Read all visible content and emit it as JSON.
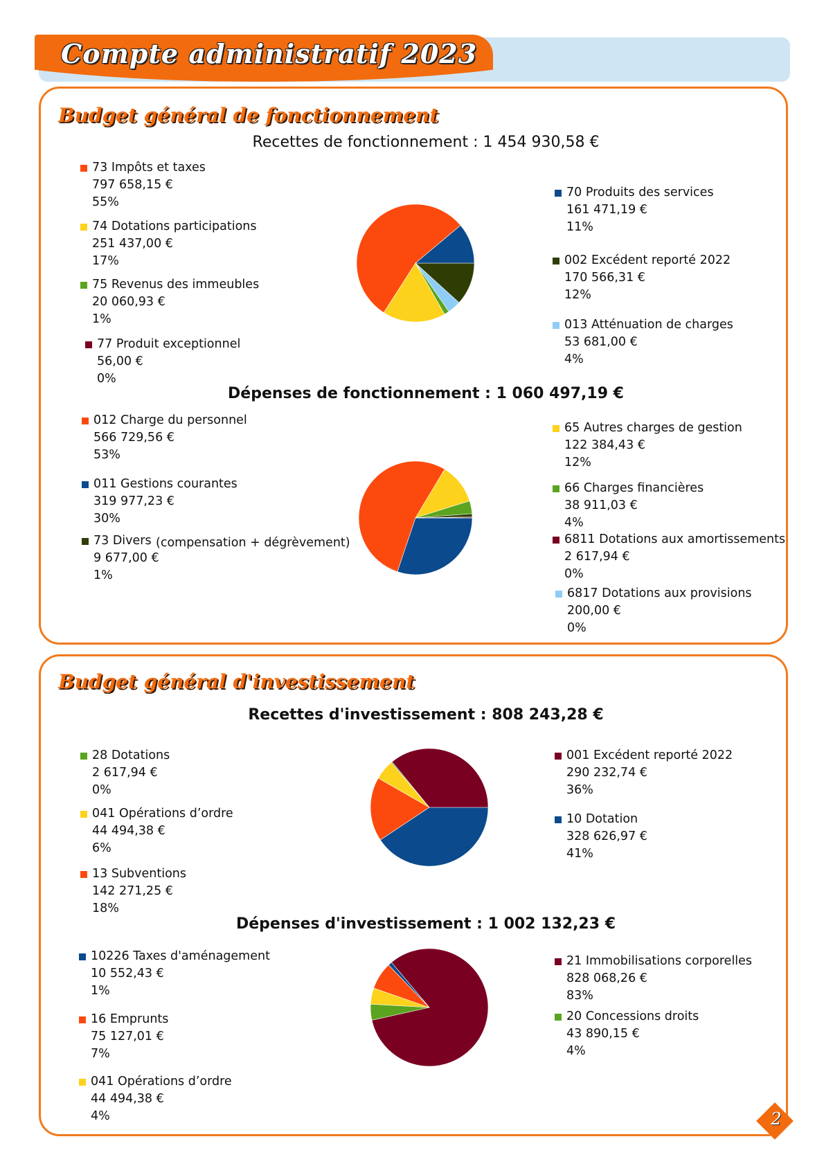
{
  "header": {
    "title": "Compte administratif 2023"
  },
  "page_number": "2",
  "fonctionnement": {
    "title": "Budget général de fonctionnement",
    "recettes": {
      "heading": "Recettes de fonctionnement : 1 454 930,58 €",
      "items": [
        {
          "label": "73 Impôts et taxes",
          "amount": "797 658,15 €",
          "pct": "55%",
          "value": 797658.15,
          "color": "#fc4a0f"
        },
        {
          "label": "74 Dotations participations",
          "amount": "251 437,00 €",
          "pct": "17%",
          "value": 251437.0,
          "color": "#fdd21c"
        },
        {
          "label": "75 Revenus des immeubles",
          "amount": "20 060,93 €",
          "pct": "1%",
          "value": 20060.93,
          "color": "#5aa41f"
        },
        {
          "label": "77  Produit exceptionnel",
          "amount": "56,00 €",
          "pct": "0%",
          "value": 56.0,
          "color": "#7a0022"
        },
        {
          "label": "70 Produits des services",
          "amount": "161 471,19 €",
          "pct": "11%",
          "value": 161471.19,
          "color": "#0b4a8c"
        },
        {
          "label": "002 Excédent reporté 2022",
          "amount": "170 566,31 €",
          "pct": "12%",
          "value": 170566.31,
          "color": "#2f3d05"
        },
        {
          "label": "013 Atténuation de charges",
          "amount": "53 681,00 €",
          "pct": "4%",
          "value": 53681.0,
          "color": "#8ecdf5"
        }
      ]
    },
    "depenses": {
      "heading": "Dépenses de fonctionnement : 1 060 497,19  €",
      "note": "(compensation + dégrèvement)",
      "items": [
        {
          "label": "012 Charge du personnel",
          "amount": "566 729,56 €",
          "pct": "53%",
          "value": 566729.56,
          "color": "#fc4a0f"
        },
        {
          "label": "011 Gestions courantes",
          "amount": "319 977,23 €",
          "pct": "30%",
          "value": 319977.23,
          "color": "#0b4a8c"
        },
        {
          "label": "73 Divers",
          "amount": "9 677,00 €",
          "pct": "1%",
          "value": 9677.0,
          "color": "#2f3d05"
        },
        {
          "label": "65 Autres charges de gestion",
          "amount": "122 384,43 €",
          "pct": "12%",
          "value": 122384.43,
          "color": "#fdd21c"
        },
        {
          "label": "66 Charges financières",
          "amount": "38 911,03 €",
          "pct": "4%",
          "value": 38911.03,
          "color": "#5aa41f"
        },
        {
          "label": "6811 Dotations aux amortissements",
          "amount": "2 617,94 €",
          "pct": "0%",
          "value": 2617.94,
          "color": "#7a0022"
        },
        {
          "label": "6817  Dotations aux provisions",
          "amount": "200,00 €",
          "pct": "0%",
          "value": 200.0,
          "color": "#8ecdf5"
        }
      ]
    }
  },
  "investissement": {
    "title": "Budget général d'investissement",
    "recettes": {
      "heading": "Recettes d'investissement : 808 243,28 €",
      "items": [
        {
          "label": "28 Dotations",
          "amount": "2 617,94 €",
          "pct": "0%",
          "value": 2617.94,
          "color": "#5aa41f"
        },
        {
          "label": "041 Opérations d’ordre",
          "amount": "44 494,38 €",
          "pct": "6%",
          "value": 44494.38,
          "color": "#fdd21c"
        },
        {
          "label": "13 Subventions",
          "amount": "142 271,25 €",
          "pct": "18%",
          "value": 142271.25,
          "color": "#fc4a0f"
        },
        {
          "label": "001 Excédent reporté 2022",
          "amount": "290 232,74 €",
          "pct": "36%",
          "value": 290232.74,
          "color": "#7a0022"
        },
        {
          "label": "10 Dotation",
          "amount": "328 626,97 €",
          "pct": "41%",
          "value": 328626.97,
          "color": "#0b4a8c"
        }
      ]
    },
    "depenses": {
      "heading": "Dépenses d'investissement : 1 002 132,23 €",
      "items": [
        {
          "label": "10226 Taxes d'aménagement",
          "amount": "10 552,43 €",
          "pct": "1%",
          "value": 10552.43,
          "color": "#0b4a8c"
        },
        {
          "label": "16 Emprunts",
          "amount": "75 127,01 €",
          "pct": "7%",
          "value": 75127.01,
          "color": "#fc4a0f"
        },
        {
          "label": "041 Opérations d’ordre",
          "amount": "44 494,38 €",
          "pct": "4%",
          "value": 44494.38,
          "color": "#fdd21c"
        },
        {
          "label": "21 Immobilisations corporelles",
          "amount": "828 068,26 €",
          "pct": "83%",
          "value": 828068.26,
          "color": "#7a0022"
        },
        {
          "label": "20 Concessions droits",
          "amount": "43 890,15 €",
          "pct": "4%",
          "value": 43890.15,
          "color": "#5aa41f"
        }
      ]
    }
  },
  "chart_data": [
    {
      "type": "pie",
      "title": "Recettes de fonctionnement : 1 454 930,58 €",
      "categories": [
        "73 Impôts et taxes",
        "74 Dotations participations",
        "75 Revenus des immeubles",
        "77  Produit exceptionnel",
        "70 Produits des services",
        "002 Excédent reporté 2022",
        "013 Atténuation de charges"
      ],
      "values": [
        797658.15,
        251437.0,
        20060.93,
        56.0,
        161471.19,
        170566.31,
        53681.0
      ]
    },
    {
      "type": "pie",
      "title": "Dépenses de fonctionnement : 1 060 497,19  €",
      "categories": [
        "012 Charge du personnel",
        "011 Gestions courantes",
        "73 Divers",
        "65 Autres charges de gestion",
        "66 Charges financières",
        "6811 Dotations aux amortissements",
        "6817  Dotations aux provisions"
      ],
      "values": [
        566729.56,
        319977.23,
        9677.0,
        122384.43,
        38911.03,
        2617.94,
        200.0
      ]
    },
    {
      "type": "pie",
      "title": "Recettes d'investissement : 808 243,28 €",
      "categories": [
        "28 Dotations",
        "041 Opérations d’ordre",
        "13 Subventions",
        "001 Excédent reporté 2022",
        "10 Dotation"
      ],
      "values": [
        2617.94,
        44494.38,
        142271.25,
        290232.74,
        328626.97
      ]
    },
    {
      "type": "pie",
      "title": "Dépenses d'investissement : 1 002 132,23 €",
      "categories": [
        "10226 Taxes d'aménagement",
        "16 Emprunts",
        "041 Opérations d’ordre",
        "21 Immobilisations corporelles",
        "20 Concessions droits"
      ],
      "values": [
        10552.43,
        75127.01,
        44494.38,
        828068.26,
        43890.15
      ]
    }
  ]
}
